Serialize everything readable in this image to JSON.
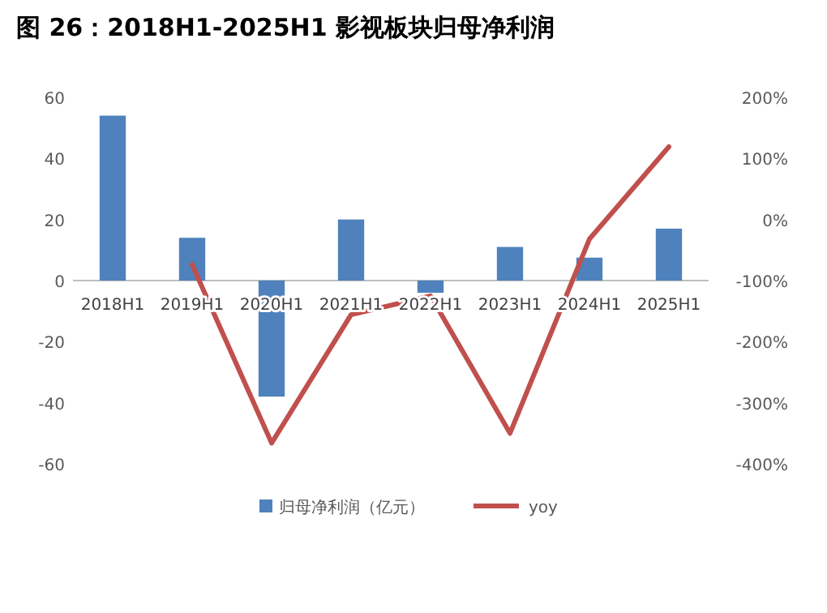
{
  "chart_data": {
    "type": "bar",
    "title": "图 26：2018H1-2025H1 影视板块归母净利润",
    "categories": [
      "2018H1",
      "2019H1",
      "2020H1",
      "2021H1",
      "2022H1",
      "2023H1",
      "2024H1",
      "2025H1"
    ],
    "series": [
      {
        "name": "归母净利润（亿元）",
        "type": "bar",
        "color": "#4f81bd",
        "values": [
          54,
          14,
          -38,
          20,
          -4,
          11,
          7.5,
          17
        ]
      },
      {
        "name": "yoy",
        "type": "line",
        "axis": "y2",
        "color": "#c0504d",
        "values": [
          null,
          -74,
          -366,
          -156,
          -125,
          -350,
          -32,
          119
        ]
      }
    ],
    "ylim": [
      -60,
      60
    ],
    "yticks": [
      -60,
      -40,
      -20,
      0,
      20,
      40,
      60
    ],
    "y2lim": [
      -400,
      200
    ],
    "y2ticks": [
      {
        "value": -400,
        "label": "-400%"
      },
      {
        "value": -300,
        "label": "-300%"
      },
      {
        "value": -200,
        "label": "-200%"
      },
      {
        "value": -100,
        "label": "-100%"
      },
      {
        "value": 0,
        "label": "0%"
      },
      {
        "value": 100,
        "label": "100%"
      },
      {
        "value": 200,
        "label": "200%"
      }
    ],
    "legend": "bottom"
  }
}
